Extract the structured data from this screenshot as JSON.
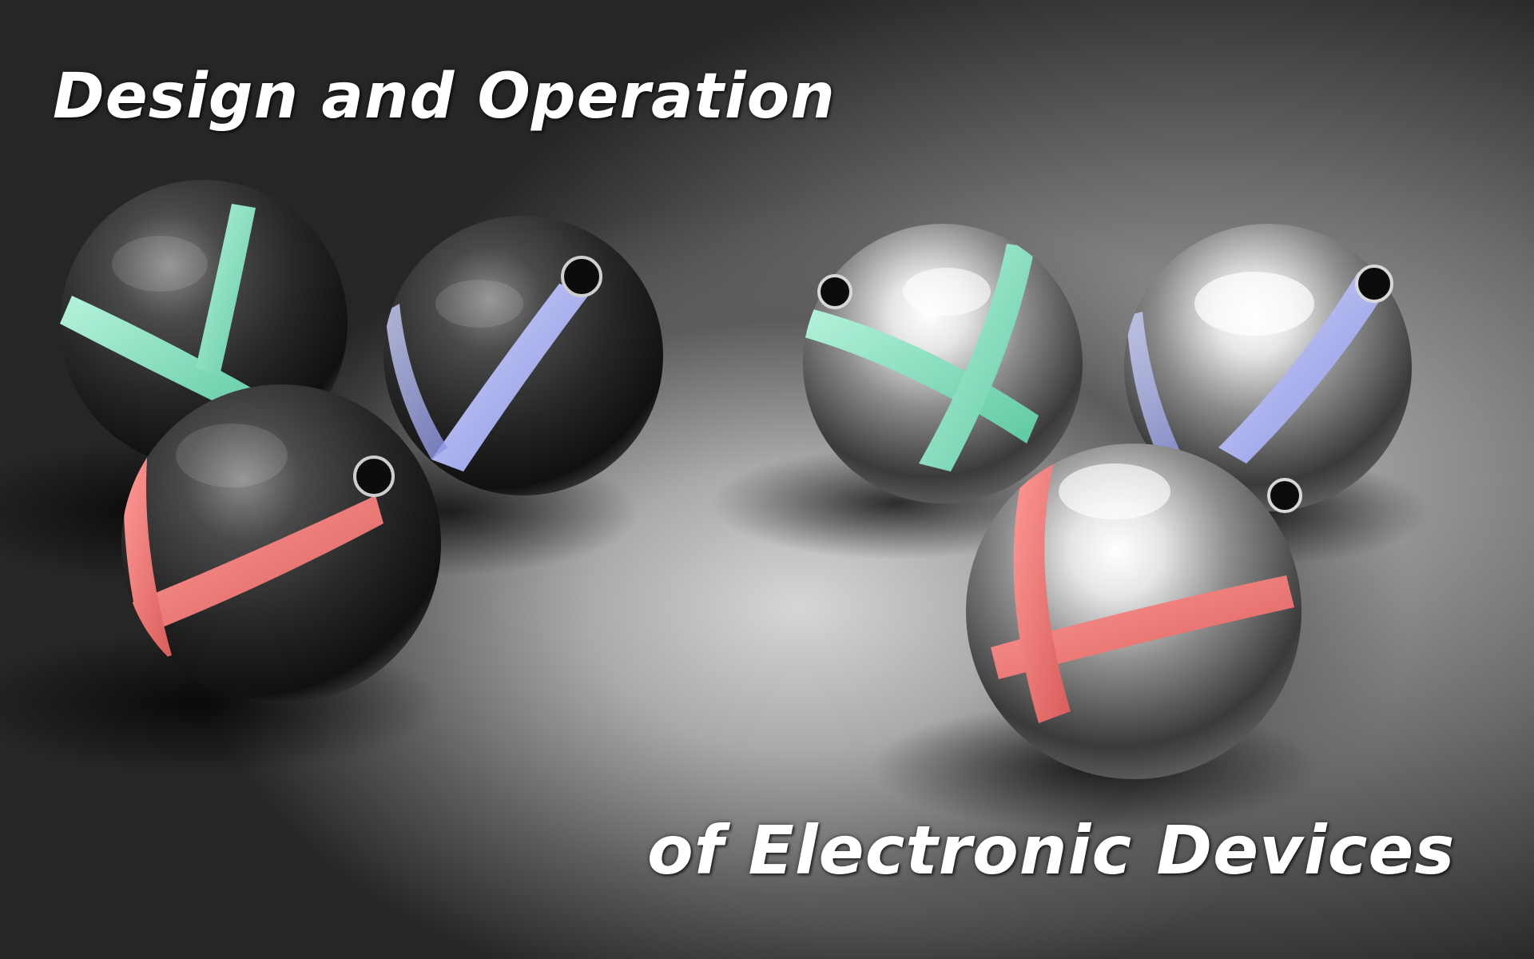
{
  "image": {
    "kind": "desktop-wallpaper",
    "subject": "six glossy spheres with colored stripes",
    "colors": {
      "stripe_green": "#8fe6c6",
      "stripe_blue": "#aab2f2",
      "stripe_red": "#f07a78",
      "sphere_body": "#2b2b2b",
      "text": "#ffffff"
    }
  },
  "title": {
    "line1": "Design and Operation",
    "line2": "of Electronic Devices"
  }
}
